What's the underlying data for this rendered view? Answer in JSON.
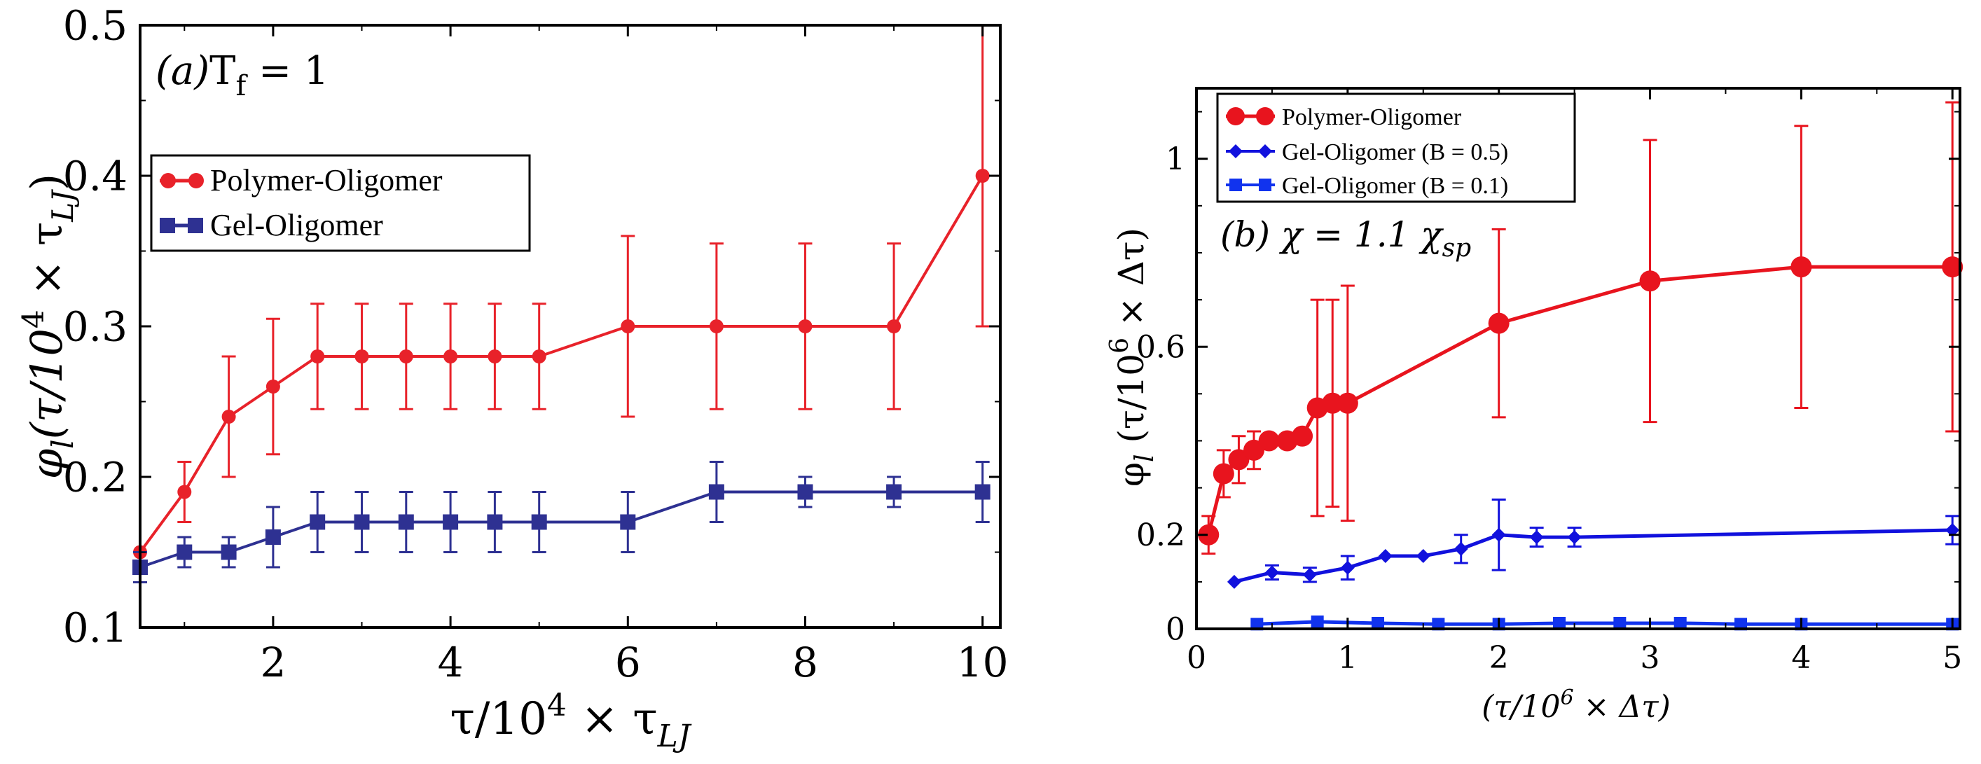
{
  "chart_data": [
    {
      "type": "line",
      "panel_label": "(a)",
      "title": "(a) T_f = 1",
      "title_text": "T",
      "title_sub": "f",
      "title_rest": " = 1",
      "xlabel": "τ/10^4 × τ_LJ",
      "xlabel_parts": {
        "a": "τ/10",
        "sup": "4",
        "b": " × τ",
        "sub": "LJ"
      },
      "ylabel": "φ_l(τ/10^4 × τ_LJ)",
      "ylabel_parts": {
        "a": "φ",
        "sub1": "l",
        "b": "(τ/10",
        "sup": "4",
        "c": " × τ",
        "sub2": "LJ",
        "d": ")"
      },
      "xlim": [
        0.5,
        10.2
      ],
      "ylim": [
        0.1,
        0.5
      ],
      "xticks": [
        2,
        4,
        6,
        8,
        10
      ],
      "xtick_labels": [
        "2",
        "4",
        "6",
        "8",
        "10"
      ],
      "yticks": [
        0.1,
        0.2,
        0.3,
        0.4,
        0.5
      ],
      "ytick_labels": [
        "0.1",
        "0.2",
        "0.3",
        "0.4",
        "0.5"
      ],
      "legend_position": "upper-left",
      "series": [
        {
          "name": "Polymer-Oligomer",
          "color": "#e8222a",
          "marker": "circle",
          "x": [
            0.5,
            1,
            1.5,
            2,
            2.5,
            3,
            3.5,
            4,
            4.5,
            5,
            6,
            7,
            8,
            9,
            10
          ],
          "y": [
            0.15,
            0.19,
            0.24,
            0.26,
            0.28,
            0.28,
            0.28,
            0.28,
            0.28,
            0.28,
            0.3,
            0.3,
            0.3,
            0.3,
            0.4
          ],
          "err": [
            0.0,
            0.02,
            0.04,
            0.045,
            0.035,
            0.035,
            0.035,
            0.035,
            0.035,
            0.035,
            0.06,
            0.055,
            0.055,
            0.055,
            0.1
          ]
        },
        {
          "name": "Gel-Oligomer",
          "color": "#2e3192",
          "marker": "square",
          "x": [
            0.5,
            1,
            1.5,
            2,
            2.5,
            3,
            3.5,
            4,
            4.5,
            5,
            6,
            7,
            8,
            9,
            10
          ],
          "y": [
            0.14,
            0.15,
            0.15,
            0.16,
            0.17,
            0.17,
            0.17,
            0.17,
            0.17,
            0.17,
            0.17,
            0.19,
            0.19,
            0.19,
            0.19
          ],
          "err": [
            0.01,
            0.01,
            0.01,
            0.02,
            0.02,
            0.02,
            0.02,
            0.02,
            0.02,
            0.02,
            0.02,
            0.02,
            0.01,
            0.01,
            0.02
          ]
        }
      ]
    },
    {
      "type": "line",
      "panel_label": "(b)",
      "title": "(b) χ = 1.1 χ_sp",
      "title_text": "(b) χ = 1.1 χ",
      "title_sub": "sp",
      "xlabel": "(τ/10^6 × Δτ)",
      "xlabel_parts": {
        "a": "(τ/10",
        "sup": "6",
        "b": " × Δτ)"
      },
      "ylabel": "φ_l (τ/10^6 × Δτ)",
      "ylabel_parts": {
        "a": "φ",
        "sub1": "l",
        "b": " (τ/10",
        "sup": "6",
        "c": " × Δτ)"
      },
      "xlim": [
        0,
        5.05
      ],
      "ylim": [
        0,
        1.15
      ],
      "xticks": [
        0,
        1,
        2,
        3,
        4,
        5
      ],
      "xtick_labels": [
        "0",
        "1",
        "2",
        "3",
        "4",
        "5"
      ],
      "yticks": [
        0,
        0.2,
        0.6,
        1
      ],
      "ytick_labels": [
        "0",
        "0.2",
        "0.6",
        "1"
      ],
      "legend_position": "upper-left",
      "series": [
        {
          "name": "Polymer-Oligomer",
          "color": "#e8141e",
          "marker": "circle",
          "x": [
            0.08,
            0.18,
            0.28,
            0.38,
            0.48,
            0.6,
            0.7,
            0.8,
            0.9,
            1.0,
            2.0,
            3.0,
            4.0,
            5.0
          ],
          "y": [
            0.2,
            0.33,
            0.36,
            0.38,
            0.4,
            0.4,
            0.41,
            0.47,
            0.48,
            0.48,
            0.65,
            0.74,
            0.77,
            0.77
          ],
          "err": [
            0.04,
            0.05,
            0.05,
            0.04,
            0.0,
            0.0,
            0.0,
            0.23,
            0.22,
            0.25,
            0.2,
            0.3,
            0.3,
            0.35
          ]
        },
        {
          "name": "Gel-Oligomer (B = 0.5)",
          "color": "#1111dd",
          "marker": "diamond",
          "x": [
            0.25,
            0.5,
            0.75,
            1.0,
            1.25,
            1.5,
            1.75,
            2.0,
            2.25,
            2.5,
            5.0
          ],
          "y": [
            0.1,
            0.12,
            0.115,
            0.13,
            0.155,
            0.155,
            0.17,
            0.2,
            0.195,
            0.195,
            0.21
          ],
          "err": [
            0.0,
            0.015,
            0.015,
            0.025,
            0.0,
            0.0,
            0.03,
            0.075,
            0.02,
            0.02,
            0.03
          ]
        },
        {
          "name": "Gel-Oligomer (B = 0.1)",
          "color": "#1133ee",
          "marker": "square",
          "x": [
            0.4,
            0.8,
            1.2,
            1.6,
            2.0,
            2.4,
            2.8,
            3.2,
            3.6,
            4.0,
            5.0
          ],
          "y": [
            0.01,
            0.015,
            0.012,
            0.01,
            0.01,
            0.012,
            0.012,
            0.012,
            0.01,
            0.01,
            0.01
          ],
          "err": [
            0,
            0,
            0,
            0,
            0,
            0,
            0,
            0,
            0,
            0,
            0
          ]
        }
      ]
    }
  ]
}
